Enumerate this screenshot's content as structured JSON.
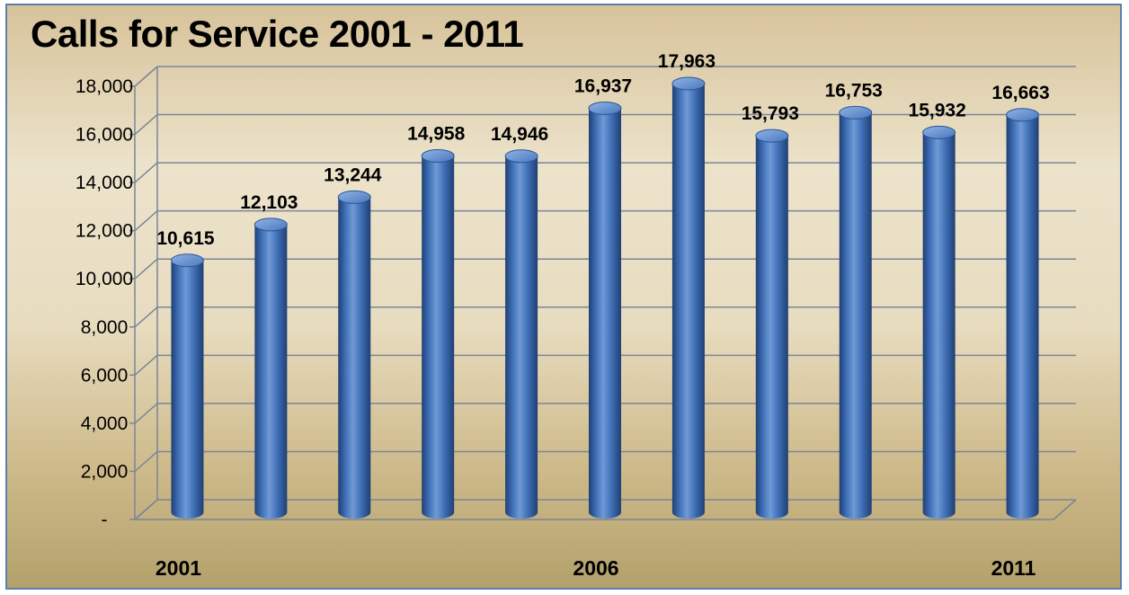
{
  "chart_data": {
    "type": "bar",
    "title": "Calls for Service 2001 - 2011",
    "categories": [
      "2001",
      "2002",
      "2003",
      "2004",
      "2005",
      "2006",
      "2007",
      "2008",
      "2009",
      "2010",
      "2011"
    ],
    "category_labels_shown": [
      "2001",
      "",
      "",
      "",
      "",
      "2006",
      "",
      "",
      "",
      "",
      "2011"
    ],
    "values": [
      10615,
      12103,
      13244,
      14958,
      14946,
      16937,
      17963,
      15793,
      16753,
      15932,
      16663
    ],
    "value_labels": [
      "10,615",
      "12,103",
      "13,244",
      "14,958",
      "14,946",
      "16,937",
      "17,963",
      "15,793",
      "16,753",
      "15,932",
      "16,663"
    ],
    "ylim": [
      0,
      18000
    ],
    "yticks": [
      0,
      2000,
      4000,
      6000,
      8000,
      10000,
      12000,
      14000,
      16000,
      18000
    ],
    "ytick_labels": [
      "-",
      "2,000",
      "4,000",
      "6,000",
      "8,000",
      "10,000",
      "12,000",
      "14,000",
      "16,000",
      "18,000"
    ],
    "xlabel": "",
    "ylabel": "",
    "grid": true,
    "legend": false,
    "style": "3d-cylinder",
    "colors": {
      "bar": "#3f6fb6",
      "bar_dark": "#1f3f75",
      "bar_light": "#7ea6dd",
      "grid": "#7b8697",
      "border": "#5b7fae"
    }
  }
}
